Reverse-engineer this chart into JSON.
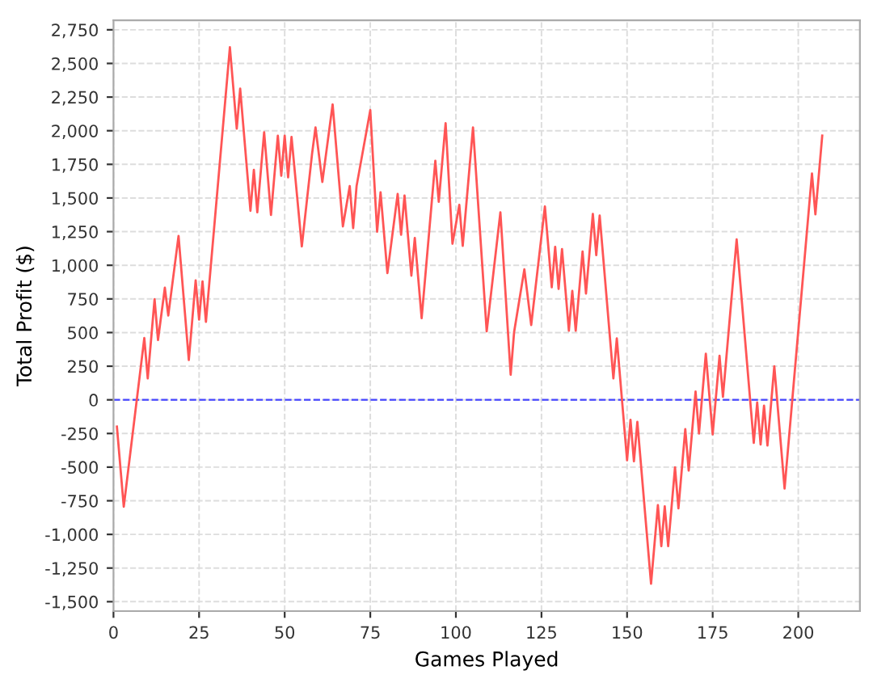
{
  "chart_data": {
    "type": "line",
    "xlabel": "Games Played",
    "ylabel": "Total Profit ($)",
    "xlim": [
      0,
      218
    ],
    "ylim": [
      -1570,
      2820
    ],
    "xticks": [
      0,
      25,
      50,
      75,
      100,
      125,
      150,
      175,
      200
    ],
    "yticks": [
      {
        "value": -1500,
        "label": "-1,500"
      },
      {
        "value": -1250,
        "label": "-1,250"
      },
      {
        "value": -1000,
        "label": "-1,000"
      },
      {
        "value": -750,
        "label": "-750"
      },
      {
        "value": -500,
        "label": "-500"
      },
      {
        "value": -250,
        "label": "-250"
      },
      0,
      250,
      500,
      750,
      {
        "value": 1000,
        "label": "1,000"
      },
      {
        "value": 1250,
        "label": "1,250"
      },
      {
        "value": 1500,
        "label": "1,500"
      },
      {
        "value": 1750,
        "label": "1,750"
      },
      {
        "value": 2000,
        "label": "2,000"
      },
      {
        "value": 2250,
        "label": "2,250"
      },
      {
        "value": 2500,
        "label": "2,500"
      },
      {
        "value": 2750,
        "label": "2,750"
      }
    ],
    "grid": true,
    "legend": false,
    "marker": "none",
    "line_style": "solid",
    "ref_lines": [
      {
        "axis": "y",
        "value": 0,
        "color": "#4444ff",
        "line_style": "dashed"
      }
    ],
    "series": [
      {
        "color": "#ff5555",
        "x": [
          1,
          3,
          9,
          10,
          12,
          13,
          15,
          16,
          19,
          22,
          24,
          25,
          26,
          27,
          34,
          36,
          37,
          40,
          41,
          42,
          44,
          46,
          48,
          49,
          50,
          51,
          52,
          55,
          58,
          59,
          61,
          64,
          67,
          69,
          70,
          71,
          75,
          77,
          78,
          80,
          83,
          84,
          85,
          87,
          88,
          90,
          94,
          95,
          97,
          99,
          101,
          102,
          105,
          109,
          113,
          116,
          117,
          120,
          122,
          126,
          128,
          129,
          130,
          131,
          133,
          134,
          135,
          137,
          138,
          140,
          141,
          142,
          146,
          147,
          150,
          151,
          152,
          153,
          157,
          159,
          160,
          161,
          162,
          164,
          165,
          167,
          168,
          170,
          171,
          173,
          175,
          177,
          178,
          182,
          187,
          188,
          189,
          190,
          191,
          193,
          196,
          204,
          205,
          207
        ],
        "values": [
          -199,
          -794,
          459,
          159,
          748,
          444,
          833,
          626,
          1218,
          296,
          888,
          596,
          880,
          580,
          2620,
          2016,
          2313,
          1405,
          1709,
          1394,
          1989,
          1374,
          1963,
          1666,
          1963,
          1654,
          1954,
          1140,
          1829,
          2024,
          1619,
          2196,
          1289,
          1589,
          1277,
          1589,
          2153,
          1250,
          1542,
          942,
          1530,
          1227,
          1519,
          923,
          1203,
          607,
          1776,
          1472,
          2056,
          1160,
          1449,
          1145,
          2025,
          509,
          1394,
          187,
          502,
          970,
          556,
          1437,
          836,
          1137,
          825,
          1121,
          514,
          809,
          514,
          1102,
          790,
          1382,
          1075,
          1370,
          159,
          456,
          -449,
          -148,
          -456,
          -164,
          -1367,
          -783,
          -1087,
          -791,
          -1087,
          -502,
          -806,
          -218,
          -526,
          62,
          -250,
          342,
          -257,
          327,
          23,
          1192,
          -320,
          -20,
          -332,
          -43,
          -339,
          249,
          -659,
          1682,
          1379,
          1963
        ]
      }
    ]
  }
}
